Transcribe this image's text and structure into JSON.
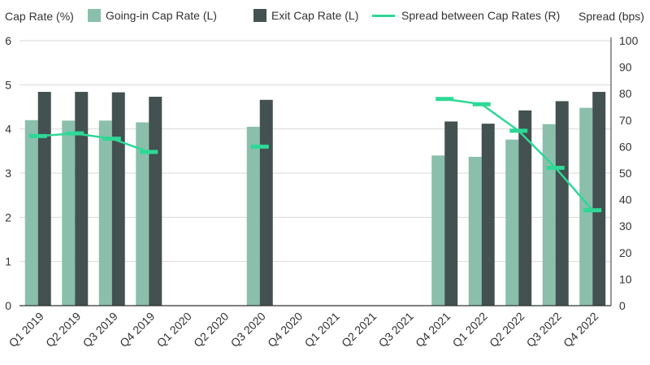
{
  "chart_data": {
    "type": "bar+line",
    "ylabel_left": "Cap Rate (%)",
    "ylabel_right": "Spread (bps)",
    "ylim_left": [
      0,
      6
    ],
    "yticks_left": [
      "0",
      "1",
      "2",
      "3",
      "4",
      "5",
      "6"
    ],
    "ylim_right": [
      0,
      100
    ],
    "yticks_right": [
      "0",
      "10",
      "20",
      "30",
      "40",
      "50",
      "60",
      "70",
      "80",
      "90",
      "100"
    ],
    "grid": true,
    "legend_position": "top",
    "categories": [
      "Q1 2019",
      "Q2 2019",
      "Q3 2019",
      "Q4 2019",
      "Q1 2020",
      "Q2 2020",
      "Q3 2020",
      "Q4 2020",
      "Q1 2021",
      "Q2 2021",
      "Q3 2021",
      "Q4 2021",
      "Q1 2022",
      "Q2 2022",
      "Q3 2022",
      "Q4 2022"
    ],
    "series": [
      {
        "name": "Going-in Cap Rate (L)",
        "kind": "bar",
        "axis": "left",
        "color": "#8ABFAC",
        "values": [
          4.2,
          4.19,
          4.19,
          4.15,
          null,
          null,
          4.05,
          null,
          null,
          null,
          null,
          3.4,
          3.37,
          3.76,
          4.11,
          4.48
        ]
      },
      {
        "name": "Exit Cap Rate (L)",
        "kind": "bar",
        "axis": "left",
        "color": "#435150",
        "values": [
          4.84,
          4.84,
          4.83,
          4.73,
          null,
          null,
          4.66,
          null,
          null,
          null,
          null,
          4.17,
          4.12,
          4.42,
          4.63,
          4.84
        ]
      },
      {
        "name": "Spread between Cap Rates (R)",
        "kind": "line",
        "axis": "right",
        "color": "#2ED896",
        "values": [
          64,
          65,
          63,
          58,
          null,
          null,
          60,
          null,
          null,
          null,
          null,
          78,
          76,
          66,
          52,
          36
        ]
      }
    ]
  },
  "colors": {
    "going_in": "#8ABFAC",
    "exit": "#435150",
    "spread": "#2ED896",
    "grid": "#D9D9D9",
    "axis": "#333333"
  }
}
